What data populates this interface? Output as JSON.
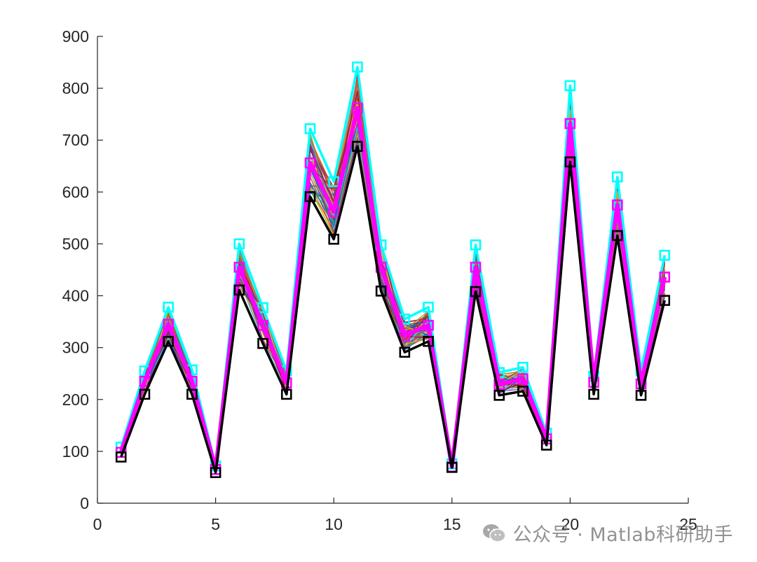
{
  "chart_data": {
    "type": "line",
    "title": "",
    "xlabel": "",
    "ylabel": "",
    "xlim": [
      0,
      25
    ],
    "ylim": [
      0,
      900
    ],
    "xticks": [
      0,
      5,
      10,
      15,
      20,
      25
    ],
    "yticks": [
      0,
      100,
      200,
      300,
      400,
      500,
      600,
      700,
      800,
      900
    ],
    "xtick_labels": [
      "0",
      "5",
      "10",
      "15",
      "20",
      "25"
    ],
    "ytick_labels": [
      "0",
      "100",
      "200",
      "300",
      "400",
      "500",
      "600",
      "700",
      "800",
      "900"
    ],
    "grid": false,
    "x": [
      1,
      2,
      3,
      4,
      5,
      6,
      7,
      8,
      9,
      10,
      11,
      12,
      13,
      14,
      15,
      16,
      17,
      18,
      19,
      20,
      21,
      22,
      23,
      24
    ],
    "series": [
      {
        "color": "#00FFFF",
        "marker": "square",
        "values": [
          108,
          255,
          378,
          257,
          72,
          500,
          377,
          255,
          722,
          620,
          841,
          498,
          355,
          378,
          76,
          498,
          252,
          262,
          135,
          805,
          245,
          629,
          255,
          478
        ]
      },
      {
        "color": "#FF00FF",
        "marker": "square",
        "values": [
          98,
          235,
          345,
          235,
          65,
          455,
          343,
          232,
          656,
          562,
          762,
          455,
          323,
          343,
          70,
          455,
          229,
          240,
          124,
          732,
          233,
          575,
          230,
          436
        ]
      },
      {
        "color": "#000000",
        "marker": "square",
        "values": [
          89,
          210,
          312,
          210,
          59,
          411,
          308,
          210,
          591,
          509,
          688,
          409,
          291,
          312,
          69,
          408,
          208,
          216,
          112,
          658,
          210,
          516,
          208,
          391
        ]
      }
    ],
    "band_colors": [
      "#0072BD",
      "#D95319",
      "#EDB120",
      "#7E2F8E",
      "#77AC30",
      "#4DBEEE",
      "#A2142F"
    ]
  },
  "watermark": {
    "text": "公众号 · Matlab科研助手",
    "icon": "wechat-icon"
  }
}
